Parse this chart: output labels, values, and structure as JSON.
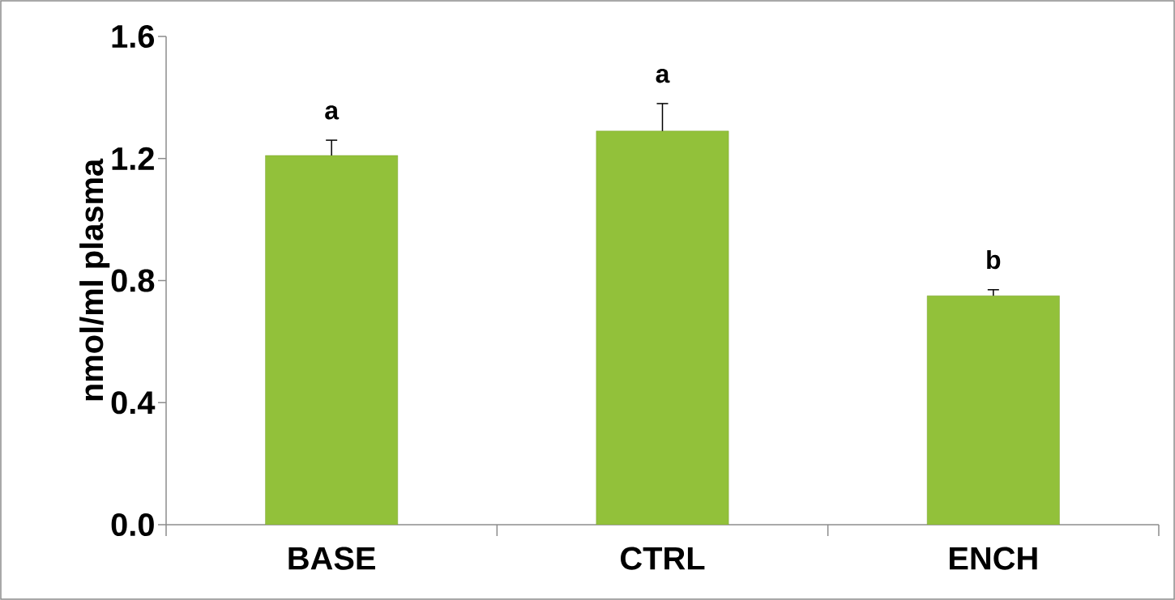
{
  "chart_data": {
    "type": "bar",
    "ylabel": "nmol/ml plasma",
    "categories": [
      "BASE",
      "CTRL",
      "ENCH"
    ],
    "values": [
      1.21,
      1.29,
      0.75
    ],
    "errors": [
      [
        1.21,
        1.26
      ],
      [
        1.29,
        1.38
      ],
      [
        0.75,
        0.77
      ]
    ],
    "color": "#92c13a",
    "ylim": [
      0,
      1.6
    ],
    "yticks": [
      {
        "value": 0,
        "label": "0.0"
      },
      0.4,
      0.8,
      1.2,
      1.6
    ],
    "annotations": [
      "a",
      "a",
      "b"
    ],
    "grid": false
  }
}
